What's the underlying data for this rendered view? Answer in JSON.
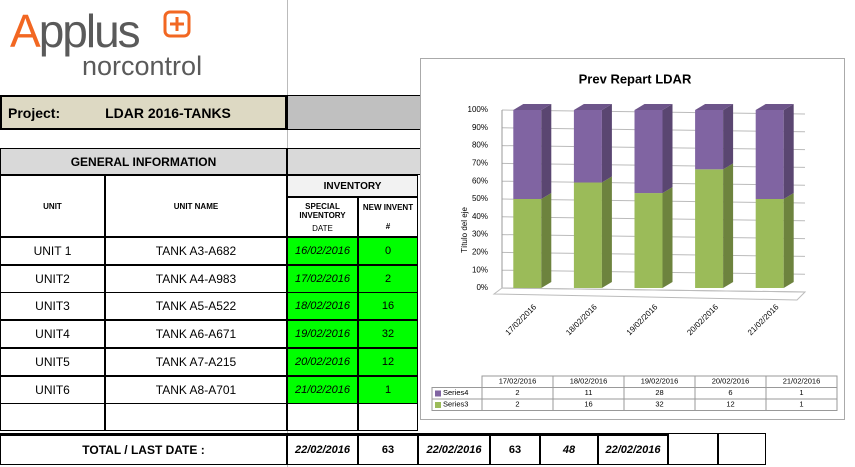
{
  "logo": {
    "brand": "Applus",
    "sub": "norcontrol"
  },
  "project": {
    "label": "Project:",
    "name": "LDAR 2016-TANKS"
  },
  "table": {
    "section": "GENERAL INFORMATION",
    "group": "INVENTORY",
    "headers": [
      "UNIT",
      "UNIT NAME",
      "SPECIAL INVENTORY",
      "DATE",
      "NEW INVENT",
      "#"
    ],
    "rows": [
      [
        "UNIT 1",
        "TANK A3-A682",
        "16/02/2016",
        0
      ],
      [
        "UNIT2",
        "TANK A4-A983",
        "17/02/2016",
        2
      ],
      [
        "UNIT3",
        "TANK A5-A522",
        "18/02/2016",
        16
      ],
      [
        "UNIT4",
        "TANK A6-A671",
        "19/02/2016",
        32
      ],
      [
        "UNIT5",
        "TANK A7-A215",
        "20/02/2016",
        12
      ],
      [
        "UNIT6",
        "TANK A8-A701",
        "21/02/2016",
        1
      ]
    ],
    "total": [
      "TOTAL / LAST DATE :",
      "22/02/2016",
      63,
      "22/02/2016",
      63,
      48,
      "22/02/2016"
    ]
  },
  "chart_data": {
    "type": "stacked-percent-bar",
    "title": "Prev Repart LDAR",
    "y_label": "Título del eje",
    "categories": [
      "17/02/2016",
      "18/02/2016",
      "19/02/2016",
      "20/02/2016",
      "21/02/2016"
    ],
    "series": [
      {
        "name": "Series4",
        "color": "#8064a2",
        "values": [
          2,
          11,
          28,
          6,
          1
        ]
      },
      {
        "name": "Series3",
        "color": "#9bbb59",
        "values": [
          2,
          16,
          32,
          12,
          1
        ]
      }
    ],
    "ylim": [
      0,
      100
    ],
    "yticks": [
      {
        "value": 0,
        "label": "0%"
      },
      {
        "value": 10,
        "label": "10%"
      },
      {
        "value": 20,
        "label": "20%"
      },
      {
        "value": 30,
        "label": "30%"
      },
      {
        "value": 40,
        "label": "40%"
      },
      {
        "value": 50,
        "label": "50%"
      },
      {
        "value": 60,
        "label": "60%"
      },
      {
        "value": 70,
        "label": "70%"
      },
      {
        "value": 80,
        "label": "80%"
      },
      {
        "value": 90,
        "label": "90%"
      },
      {
        "value": 100,
        "label": "100%"
      }
    ],
    "grid": true
  }
}
